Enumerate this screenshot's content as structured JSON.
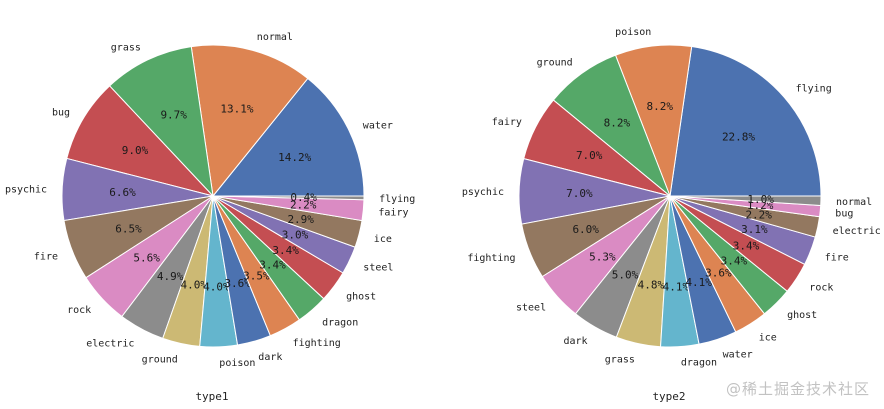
{
  "chart_data": [
    {
      "type": "pie",
      "xlabel": "type1",
      "categories": [
        "water",
        "normal",
        "grass",
        "bug",
        "psychic",
        "fire",
        "rock",
        "electric",
        "ground",
        "poison",
        "dark",
        "fighting",
        "dragon",
        "ghost",
        "steel",
        "ice",
        "fairy",
        "flying"
      ],
      "values": [
        14.2,
        13.1,
        9.7,
        9.0,
        6.6,
        6.5,
        5.6,
        4.9,
        4.0,
        4.0,
        3.6,
        3.5,
        3.4,
        3.4,
        3.0,
        2.9,
        2.2,
        0.4
      ],
      "pct_labels": [
        "14.2%",
        "13.1%",
        "9.7%",
        "9.0%",
        "6.6%",
        "6.5%",
        "5.6%",
        "4.9%",
        "4.0%",
        "4.0%",
        "3.6%",
        "3.5%",
        "3.4%",
        "3.4%",
        "3.0%",
        "2.9%",
        "2.2%",
        "0.4%"
      ]
    },
    {
      "type": "pie",
      "xlabel": "type2",
      "categories": [
        "flying",
        "poison",
        "ground",
        "fairy",
        "psychic",
        "fighting",
        "steel",
        "dark",
        "grass",
        "dragon",
        "water",
        "ice",
        "ghost",
        "rock",
        "fire",
        "electric",
        "bug",
        "normal"
      ],
      "values": [
        22.8,
        8.2,
        8.2,
        7.0,
        7.0,
        6.0,
        5.3,
        5.0,
        4.8,
        4.1,
        4.1,
        3.6,
        3.4,
        3.4,
        3.1,
        2.2,
        1.2,
        1.0
      ],
      "pct_labels": [
        "22.8%",
        "8.2%",
        "8.2%",
        "7.0%",
        "7.0%",
        "6.0%",
        "5.3%",
        "5.0%",
        "4.8%",
        "4.1%",
        "4.1%",
        "3.6%",
        "3.4%",
        "3.4%",
        "3.1%",
        "2.2%",
        "1.2%",
        "1.0%"
      ]
    }
  ],
  "palette": [
    "#4c72b0",
    "#dd8452",
    "#55a868",
    "#c44e52",
    "#8172b3",
    "#937860",
    "#da8bc3",
    "#8c8c8c",
    "#ccb974",
    "#64b5cd"
  ],
  "watermark": "@稀土掘金技术社区"
}
